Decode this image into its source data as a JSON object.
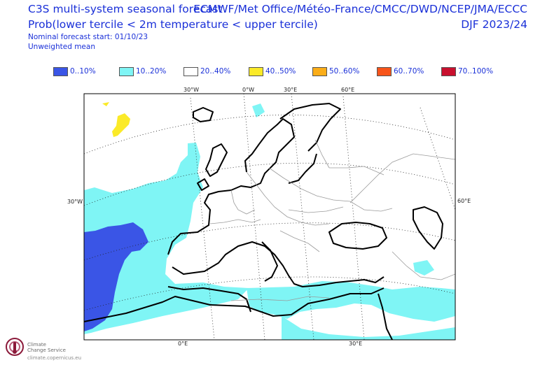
{
  "header": {
    "title": "C3S multi-system seasonal forecast",
    "subtitle": "Prob(lower tercile < 2m temperature < upper tercile)",
    "note1": "Nominal forecast start: 01/10/23",
    "note2": "Unweighted mean",
    "sources": "ECMWF/Met Office/Météo-France/CMCC/DWD/NCEP/JMA/ECCC",
    "period": "DJF 2023/24"
  },
  "legend": [
    {
      "label": "0..10%",
      "color": "#3a55e6"
    },
    {
      "label": "10..20%",
      "color": "#7ff5f5"
    },
    {
      "label": "20..40%",
      "color": "#ffffff"
    },
    {
      "label": "40..50%",
      "color": "#fbea28"
    },
    {
      "label": "50..60%",
      "color": "#fbad18"
    },
    {
      "label": "60..70%",
      "color": "#f7541a"
    },
    {
      "label": "70..100%",
      "color": "#c8102e"
    }
  ],
  "grid_labels": {
    "top_30w": "30°W",
    "top_0w": "0°W",
    "top_30e": "30°E",
    "top_60e": "60°E",
    "left_30w": "30°W",
    "right_60e": "60°E",
    "bottom_0e": "0°E",
    "bottom_30e": "30°E"
  },
  "logo": {
    "name_line1": "Climate",
    "name_line2": "Change Service",
    "url": "climate.copernicus.eu"
  },
  "colors": {
    "title_text": "#1a30d8",
    "land_outline": "#000000",
    "borders": "#9a9a9a",
    "graticule": "#000000"
  }
}
